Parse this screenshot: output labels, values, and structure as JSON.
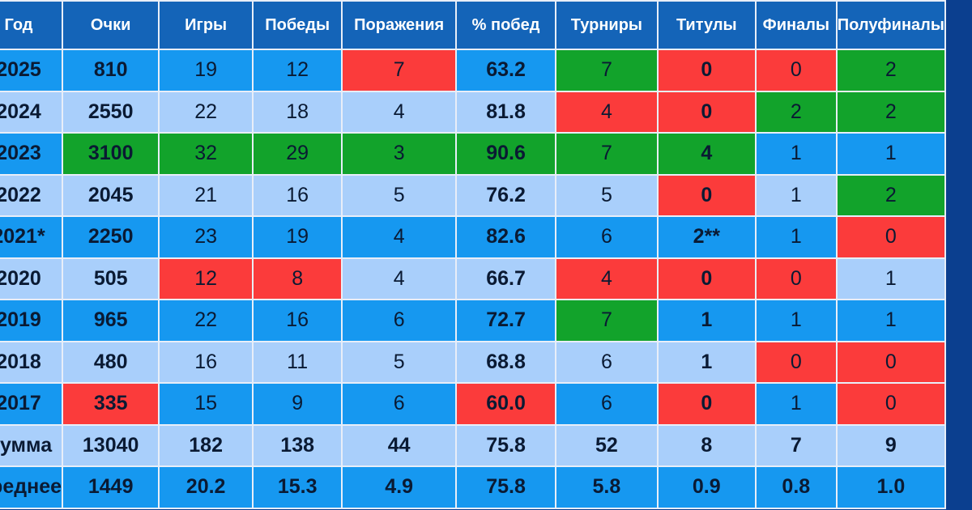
{
  "colors": {
    "header_bg": "#1464b8",
    "row_dark": "#1698f0",
    "row_light": "#a9cffb",
    "highlight_red": "#fb3b3b",
    "highlight_green": "#12a32b"
  },
  "columns": [
    "Год",
    "Очки",
    "Игры",
    "Победы",
    "Поражения",
    "% побед",
    "Турниры",
    "Титулы",
    "Финалы",
    "Полуфиналы"
  ],
  "rows": [
    {
      "cells": [
        "2025",
        "810",
        "19",
        "12",
        "7",
        "63.2",
        "7",
        "0",
        "0",
        "2"
      ]
    },
    {
      "cells": [
        "2024",
        "2550",
        "22",
        "18",
        "4",
        "81.8",
        "4",
        "0",
        "2",
        "2"
      ]
    },
    {
      "cells": [
        "2023",
        "3100",
        "32",
        "29",
        "3",
        "90.6",
        "7",
        "4",
        "1",
        "1"
      ]
    },
    {
      "cells": [
        "2022",
        "2045",
        "21",
        "16",
        "5",
        "76.2",
        "5",
        "0",
        "1",
        "2"
      ]
    },
    {
      "cells": [
        "2021*",
        "2250",
        "23",
        "19",
        "4",
        "82.6",
        "6",
        "2**",
        "1",
        "0"
      ]
    },
    {
      "cells": [
        "2020",
        "505",
        "12",
        "8",
        "4",
        "66.7",
        "4",
        "0",
        "0",
        "1"
      ]
    },
    {
      "cells": [
        "2019",
        "965",
        "22",
        "16",
        "6",
        "72.7",
        "7",
        "1",
        "1",
        "1"
      ]
    },
    {
      "cells": [
        "2018",
        "480",
        "16",
        "11",
        "5",
        "68.8",
        "6",
        "1",
        "0",
        "0"
      ]
    },
    {
      "cells": [
        "2017",
        "335",
        "15",
        "9",
        "6",
        "60.0",
        "6",
        "0",
        "1",
        "0"
      ]
    }
  ],
  "totals": {
    "sum": {
      "cells": [
        "Сумма",
        "13040",
        "182",
        "138",
        "44",
        "75.8",
        "52",
        "8",
        "7",
        "9"
      ]
    },
    "avg": {
      "cells": [
        "Среднее",
        "1449",
        "20.2",
        "15.3",
        "4.9",
        "75.8",
        "5.8",
        "0.9",
        "0.8",
        "1.0"
      ]
    }
  }
}
